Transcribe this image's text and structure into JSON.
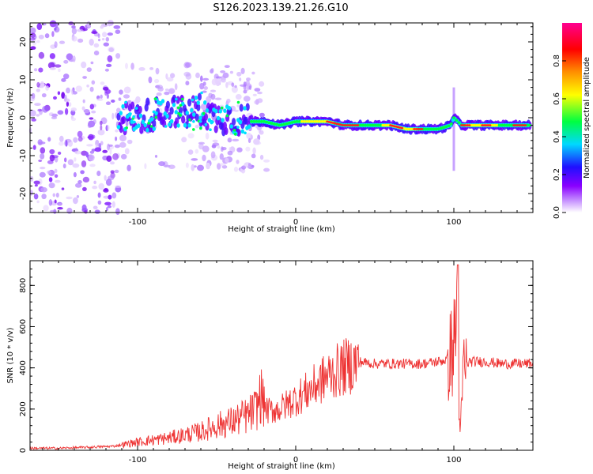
{
  "title": "S126.2023.139.21.26.G10",
  "chart_data": [
    {
      "type": "heatmap",
      "xlabel": "Height of straight line (km)",
      "ylabel": "Frequency (Hz)",
      "xlim": [
        -168,
        150
      ],
      "ylim": [
        -25,
        25
      ],
      "x_ticks": [
        -100,
        0,
        100
      ],
      "y_ticks": [
        -20,
        -10,
        0,
        10,
        20
      ],
      "ridge": {
        "x": [
          -112,
          -100,
          -90,
          -80,
          -70,
          -60,
          -50,
          -40,
          -30,
          -20,
          -10,
          0,
          10,
          20,
          30,
          40,
          50,
          60,
          70,
          80,
          90,
          98,
          100,
          105,
          110,
          120,
          130,
          140,
          148
        ],
        "y": [
          0,
          0,
          1,
          2,
          1,
          2,
          0,
          0,
          -1,
          -1,
          -2,
          -1,
          -1,
          -1,
          -2,
          -2,
          -2,
          -2,
          -3,
          -3,
          -3,
          -2,
          0,
          -2,
          -2,
          -2,
          -2,
          -2,
          -2
        ]
      },
      "colorbar": {
        "label": "Normalized spectral amplitude",
        "ticks": [
          "0.0",
          "0.2",
          "0.4",
          "0.6",
          "0.8"
        ],
        "range": [
          0,
          1
        ],
        "colors": [
          "#ffffff",
          "#9b00ff",
          "#1f00ff",
          "#00ffff",
          "#00ff00",
          "#ffff00",
          "#ff9900",
          "#ff0000",
          "#ff00aa"
        ]
      }
    },
    {
      "type": "line",
      "xlabel": "Height of straight line (km)",
      "ylabel": "SNR (10 * v/v)",
      "xlim": [
        -168,
        150
      ],
      "ylim": [
        0,
        920
      ],
      "x_ticks": [
        -100,
        0,
        100
      ],
      "y_ticks": [
        0,
        200,
        400,
        600,
        800
      ],
      "color": "#ee3333",
      "series": [
        {
          "x": [
            -168,
            -150,
            -130,
            -115,
            -100,
            -90,
            -80,
            -70,
            -60,
            -50,
            -40,
            -30,
            -25,
            -22,
            -18,
            -10,
            0,
            10,
            20,
            30,
            40,
            50,
            60,
            70,
            80,
            90,
            96,
            100,
            102,
            103,
            104,
            106,
            110,
            120,
            130,
            140,
            150
          ],
          "y": [
            10,
            10,
            15,
            20,
            40,
            50,
            60,
            75,
            90,
            120,
            140,
            170,
            200,
            270,
            190,
            200,
            250,
            300,
            360,
            400,
            430,
            420,
            420,
            420,
            420,
            430,
            440,
            500,
            700,
            320,
            50,
            400,
            430,
            430,
            420,
            420,
            420
          ]
        }
      ]
    }
  ]
}
